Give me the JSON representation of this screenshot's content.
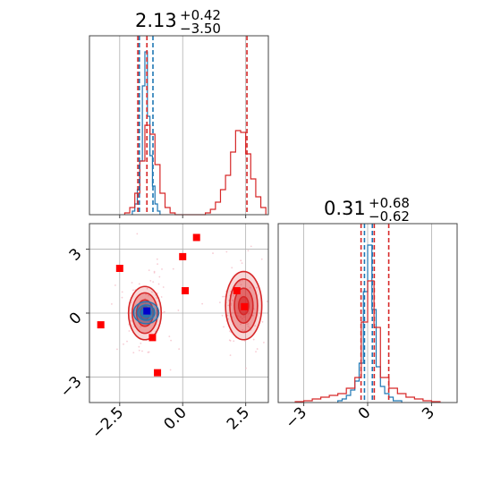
{
  "chart_data": [
    {
      "type": "histogram",
      "panel": "marginal-x",
      "title_main": "2.13",
      "title_plus": "+0.42",
      "title_minus": "−3.50",
      "xlim": [
        -3.7,
        3.4
      ],
      "ylim": [
        0,
        1.0
      ],
      "grid": true,
      "series": [
        {
          "color": "#1f77b4",
          "bin_edges": [
            -2.0,
            -1.9,
            -1.8,
            -1.7,
            -1.6,
            -1.5,
            -1.4,
            -1.3,
            -1.2,
            -1.1,
            -1.0,
            -0.9
          ],
          "counts": [
            0.02,
            0.06,
            0.14,
            0.3,
            0.72,
            0.91,
            0.55,
            0.33,
            0.16,
            0.06,
            0.02
          ]
        },
        {
          "color": "#d62728",
          "bin_edges": [
            -2.3,
            -2.1,
            -1.9,
            -1.7,
            -1.5,
            -1.3,
            -1.1,
            -0.9,
            -0.7,
            -0.5,
            -0.3,
            -0.1,
            0.1,
            0.3,
            0.5,
            0.7,
            0.9,
            1.1,
            1.3,
            1.5,
            1.7,
            1.9,
            2.1,
            2.3,
            2.5,
            2.7,
            2.9,
            3.1,
            3.3
          ],
          "counts": [
            0.01,
            0.04,
            0.12,
            0.3,
            0.5,
            0.45,
            0.28,
            0.12,
            0.04,
            0.01,
            0.0,
            0.0,
            0.0,
            0.0,
            0.0,
            0.0,
            0.01,
            0.03,
            0.07,
            0.14,
            0.22,
            0.35,
            0.47,
            0.46,
            0.34,
            0.2,
            0.1,
            0.04
          ]
        }
      ],
      "quantiles": [
        {
          "x": -1.78,
          "color": "#d62728"
        },
        {
          "x": -1.42,
          "color": "#d62728"
        },
        {
          "x": 2.55,
          "color": "#d62728"
        },
        {
          "x": -1.72,
          "color": "#1f77b4"
        },
        {
          "x": -1.18,
          "color": "#1f77b4"
        }
      ]
    },
    {
      "type": "histogram",
      "panel": "marginal-y",
      "title_main": "0.31",
      "title_plus": "+0.68",
      "title_minus": "−0.62",
      "xlim": [
        -4.2,
        4.2
      ],
      "ylim": [
        0,
        1.0
      ],
      "grid": true,
      "xticks": [
        -3,
        0,
        3
      ],
      "xtick_labels": [
        "−3",
        "0",
        "3"
      ],
      "series": [
        {
          "color": "#1f77b4",
          "bin_edges": [
            -1.4,
            -1.2,
            -1.0,
            -0.8,
            -0.6,
            -0.4,
            -0.2,
            0.0,
            0.2,
            0.4,
            0.6,
            0.8,
            1.0,
            1.2,
            1.4,
            1.6
          ],
          "counts": [
            0.01,
            0.02,
            0.04,
            0.07,
            0.12,
            0.22,
            0.62,
            0.88,
            0.52,
            0.2,
            0.09,
            0.05,
            0.03,
            0.01,
            0.01
          ]
        },
        {
          "color": "#d62728",
          "bin_edges": [
            -3.4,
            -3.0,
            -2.6,
            -2.2,
            -1.8,
            -1.4,
            -1.0,
            -0.6,
            -0.3,
            0.0,
            0.3,
            0.6,
            1.0,
            1.4,
            1.8,
            2.2,
            2.6,
            3.0,
            3.4
          ],
          "counts": [
            0.005,
            0.01,
            0.02,
            0.03,
            0.04,
            0.05,
            0.08,
            0.14,
            0.45,
            0.68,
            0.42,
            0.14,
            0.08,
            0.05,
            0.03,
            0.02,
            0.01,
            0.005
          ]
        }
      ],
      "quantiles": [
        {
          "x": -0.31,
          "color": "#d62728"
        },
        {
          "x": 0.31,
          "color": "#d62728"
        },
        {
          "x": 0.99,
          "color": "#d62728"
        },
        {
          "x": -0.15,
          "color": "#1f77b4"
        },
        {
          "x": 0.22,
          "color": "#1f77b4"
        }
      ]
    },
    {
      "type": "scatter",
      "panel": "joint",
      "xlim": [
        -3.7,
        3.4
      ],
      "ylim": [
        -4.2,
        4.2
      ],
      "grid": true,
      "xticks": [
        -2.5,
        0.0,
        2.5
      ],
      "xtick_labels": [
        "−2.5",
        "0.0",
        "2.5"
      ],
      "yticks": [
        3,
        0,
        -3
      ],
      "ytick_labels": [
        "3",
        "0",
        "−3"
      ],
      "contours": [
        {
          "cx": -1.5,
          "cy": 0.0,
          "rx": [
            0.65,
            0.5,
            0.33,
            0.18
          ],
          "ry": [
            1.25,
            0.95,
            0.62,
            0.32
          ],
          "color": "#d62728",
          "fill": true
        },
        {
          "cx": 2.42,
          "cy": 0.35,
          "rx": [
            0.72,
            0.55,
            0.37,
            0.2
          ],
          "ry": [
            1.6,
            1.25,
            0.82,
            0.42
          ],
          "color": "#d62728",
          "fill": true
        },
        {
          "cx": -1.45,
          "cy": 0.02,
          "rx": [
            0.5,
            0.34,
            0.2
          ],
          "ry": [
            0.52,
            0.36,
            0.2
          ],
          "color": "#1f77b4",
          "fill": false
        }
      ],
      "points": [
        {
          "x": -3.25,
          "y": -0.55
        },
        {
          "x": -2.5,
          "y": 2.1
        },
        {
          "x": -1.2,
          "y": -1.15
        },
        {
          "x": -1.0,
          "y": -2.8
        },
        {
          "x": 0.0,
          "y": 2.65
        },
        {
          "x": 0.1,
          "y": 1.05
        },
        {
          "x": 0.55,
          "y": 3.55
        },
        {
          "x": 2.15,
          "y": 1.05
        },
        {
          "x": 2.45,
          "y": 0.3
        }
      ],
      "truth": [
        {
          "x": -1.42,
          "y": 0.1
        }
      ],
      "point_color": "#ff0000",
      "truth_color": "#0000cc"
    }
  ]
}
